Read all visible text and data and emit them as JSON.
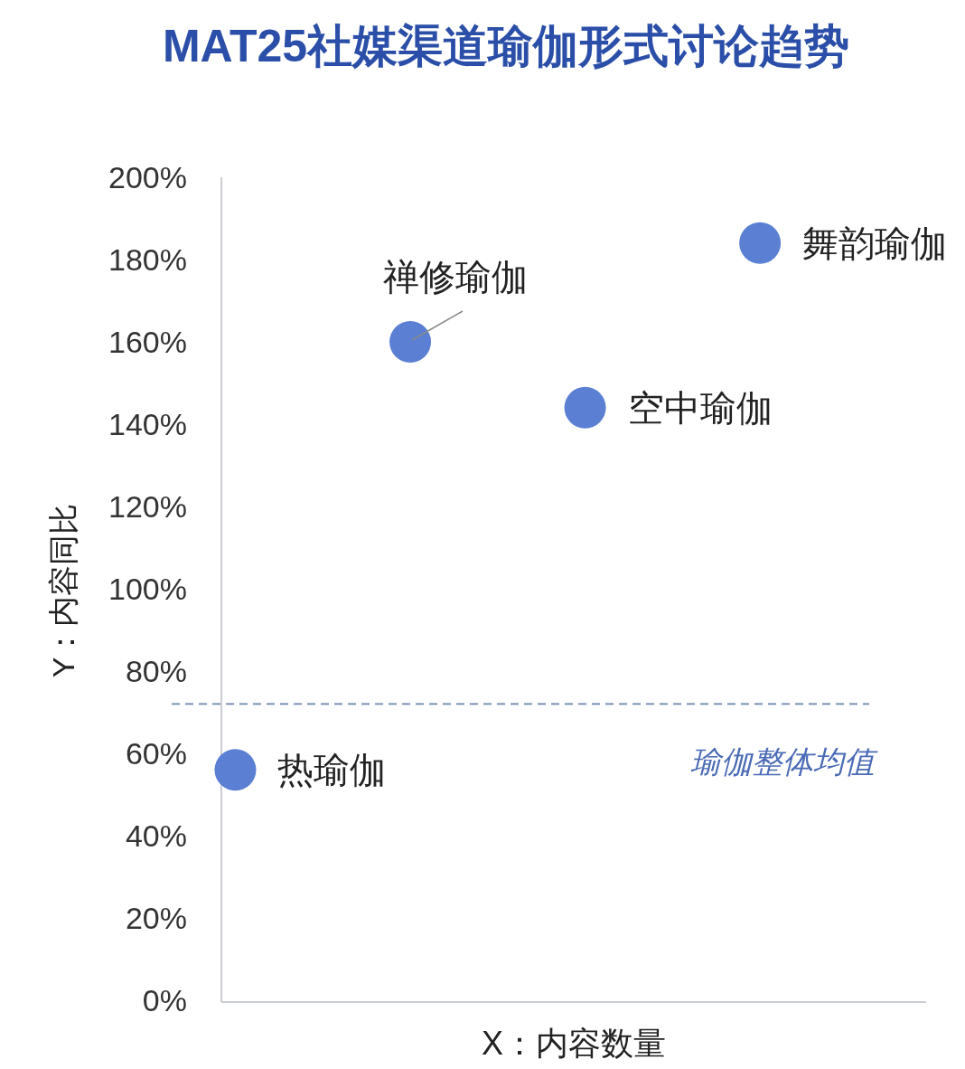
{
  "chart_data": {
    "type": "scatter",
    "title": "MAT25社媒渠道瑜伽形式讨论趋势",
    "xlabel": "X：内容数量",
    "ylabel": "Y：内容同比",
    "categories": [
      null,
      null,
      null,
      null
    ],
    "series": [
      {
        "name": "热瑜伽",
        "color": "#5b80d3",
        "values": [
          56,
          null,
          null,
          null
        ]
      },
      {
        "name": "禅修瑜伽",
        "color": "#5b80d3",
        "values": [
          null,
          160,
          null,
          null
        ]
      },
      {
        "name": "空中瑜伽",
        "color": "#5b80d3",
        "values": [
          null,
          null,
          144,
          null
        ]
      },
      {
        "name": "舞韵瑜伽",
        "color": "#5b80d3",
        "values": [
          null,
          null,
          null,
          184
        ]
      }
    ],
    "ylim": [
      0,
      200
    ],
    "yticks": [
      {
        "value": 0,
        "label": "0%"
      },
      {
        "value": 20,
        "label": "20%"
      },
      {
        "value": 40,
        "label": "40%"
      },
      {
        "value": 60,
        "label": "60%"
      },
      {
        "value": 80,
        "label": "80%"
      },
      {
        "value": 100,
        "label": "100%"
      },
      {
        "value": 120,
        "label": "120%"
      },
      {
        "value": 140,
        "label": "140%"
      },
      {
        "value": 160,
        "label": "160%"
      },
      {
        "value": 180,
        "label": "180%"
      },
      {
        "value": 200,
        "label": "200%"
      }
    ],
    "ref_lines": [
      {
        "axis": "y",
        "value": 72,
        "label": "瑜伽整体均值",
        "color": "#6a86a8",
        "line_style": "dashed"
      }
    ],
    "tick_labels": "y",
    "marker": "circle"
  }
}
